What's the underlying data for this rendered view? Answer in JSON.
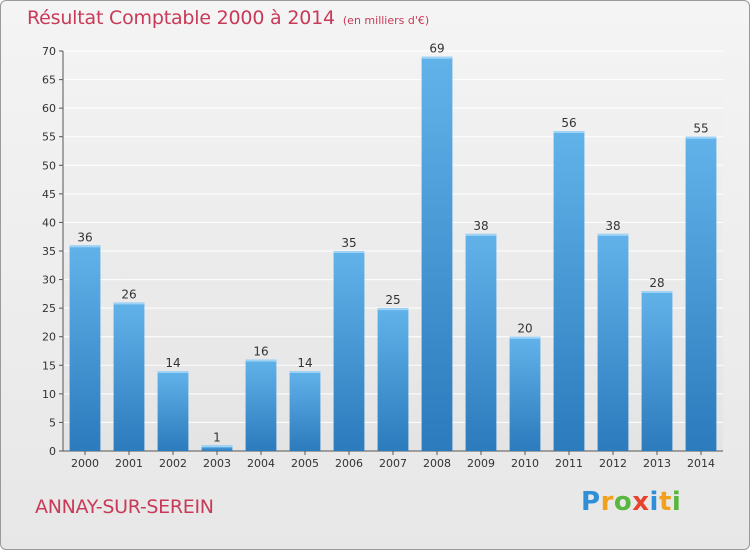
{
  "title": "Résultat Comptable 2000 à 2014",
  "unit_note": "(en milliers d'€)",
  "commune": "ANNAY-SUR-SEREIN",
  "logo": {
    "letters": [
      "P",
      "r",
      "o",
      "x",
      "i",
      "t",
      "i"
    ],
    "colors": [
      "#2f8fd8",
      "#f2a11f",
      "#59b73f",
      "#e8432f",
      "#2f8fd8",
      "#f2a11f",
      "#59b73f"
    ]
  },
  "colors": {
    "bar_light": "#62b2ea",
    "bar_dark": "#2b7bbd",
    "title": "#c83a58"
  },
  "chart_data": {
    "type": "bar",
    "title": "Résultat Comptable 2000 à 2014",
    "xlabel": "",
    "ylabel": "",
    "categories": [
      "2000",
      "2001",
      "2002",
      "2003",
      "2004",
      "2005",
      "2006",
      "2007",
      "2008",
      "2009",
      "2010",
      "2011",
      "2012",
      "2013",
      "2014"
    ],
    "values": [
      36,
      26,
      14,
      1,
      16,
      14,
      35,
      25,
      69,
      38,
      20,
      56,
      38,
      28,
      55
    ],
    "ylim": [
      0,
      70
    ],
    "yticks": [
      0,
      5,
      10,
      15,
      20,
      25,
      30,
      35,
      40,
      45,
      50,
      55,
      60,
      65,
      70
    ],
    "grid": true
  }
}
